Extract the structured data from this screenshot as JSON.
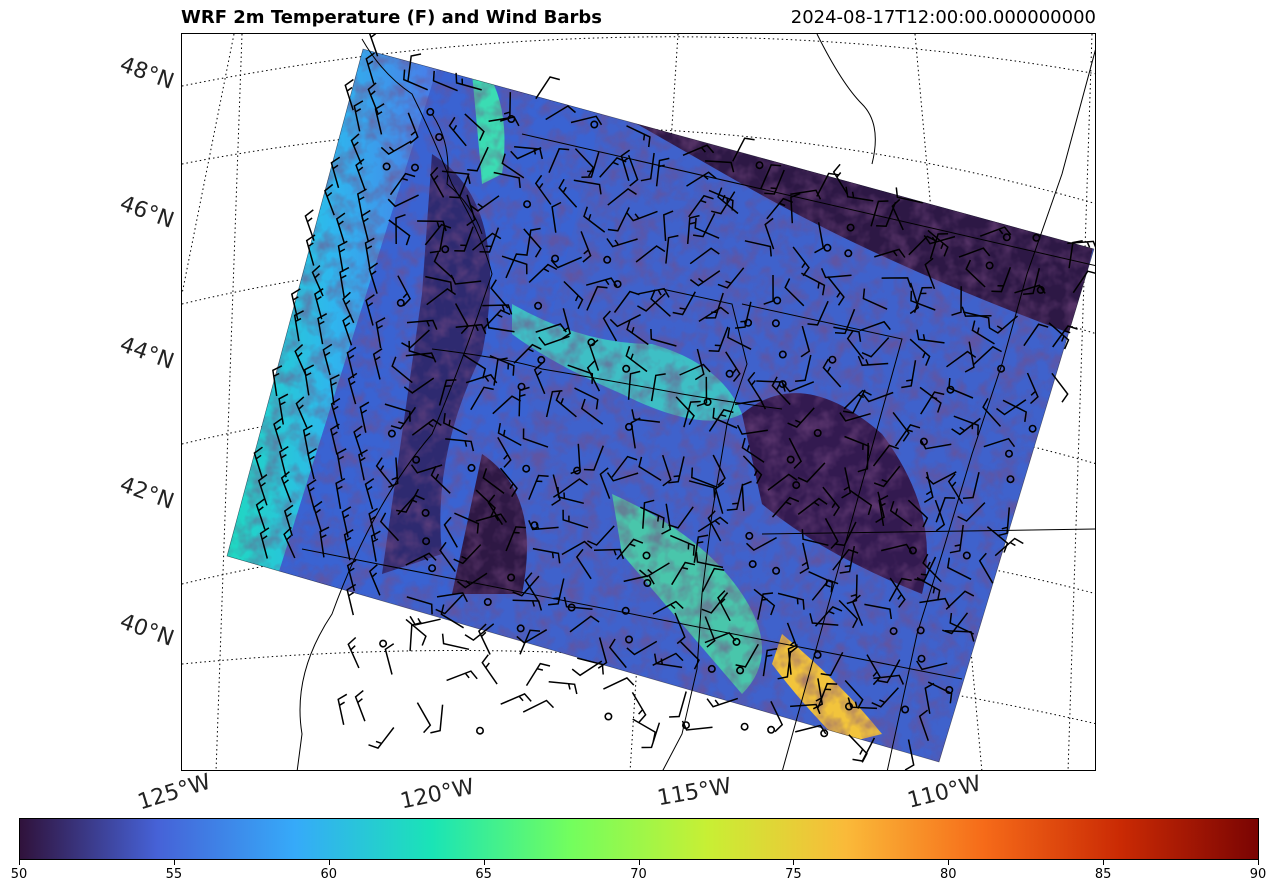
{
  "title_left": "WRF 2m Temperature (F) and Wind Barbs",
  "title_right": "2024-08-17T12:00:00.000000000",
  "latitude_labels": [
    "48°N",
    "46°N",
    "44°N",
    "42°N",
    "40°N"
  ],
  "longitude_labels": [
    "125°W",
    "120°W",
    "115°W",
    "110°W"
  ],
  "colorbar": {
    "min": 50,
    "max": 90,
    "ticks": [
      "50",
      "55",
      "60",
      "65",
      "70",
      "75",
      "80",
      "85",
      "90"
    ],
    "colormap": "turbo",
    "stops": [
      "#30123b",
      "#4662d7",
      "#36aaf9",
      "#1ae4b6",
      "#72fe5e",
      "#c8ef34",
      "#faba39",
      "#f66b19",
      "#ca2a04",
      "#7a0403"
    ]
  },
  "colors": {
    "outline": "#000000",
    "cold": "#30123b",
    "mid": "#4a8cf0",
    "warm": "#6ef56a",
    "hot": "#f5c13a"
  }
}
